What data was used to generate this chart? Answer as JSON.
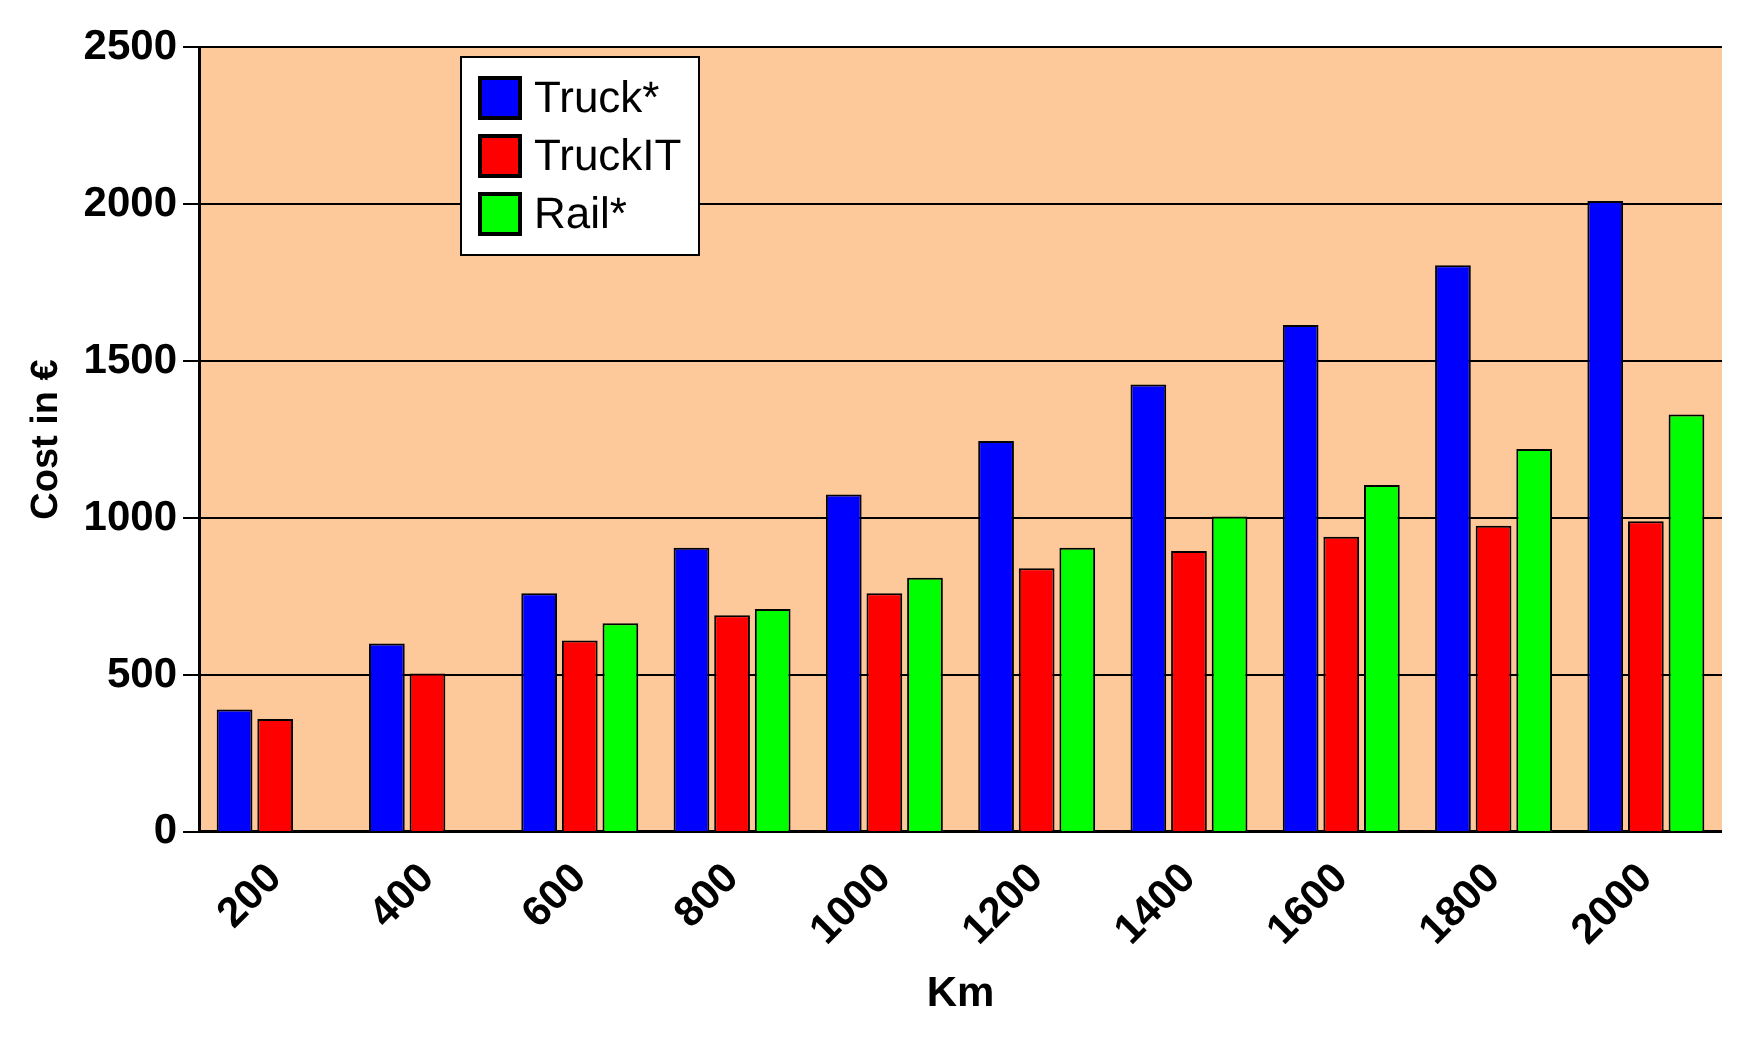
{
  "chart_data": {
    "type": "bar",
    "xlabel": "Km",
    "ylabel": "Cost in €",
    "categories": [
      "200",
      "400",
      "600",
      "800",
      "1000",
      "1200",
      "1400",
      "1600",
      "1800",
      "2000"
    ],
    "series": [
      {
        "name": "Truck*",
        "color": "#0000ff",
        "values": [
          390,
          600,
          760,
          905,
          1075,
          1245,
          1425,
          1615,
          1805,
          2010
        ]
      },
      {
        "name": "TruckIT",
        "color": "#ff0000",
        "values": [
          360,
          505,
          610,
          690,
          760,
          840,
          895,
          940,
          975,
          990
        ]
      },
      {
        "name": "Rail*",
        "color": "#00ff00",
        "values": [
          null,
          null,
          665,
          710,
          810,
          905,
          1005,
          1105,
          1220,
          1330
        ]
      }
    ],
    "ylim": [
      0,
      2500
    ],
    "yticks": [
      0,
      500,
      1000,
      1500,
      2000,
      2500
    ],
    "grid": "y",
    "legend": "top left"
  }
}
